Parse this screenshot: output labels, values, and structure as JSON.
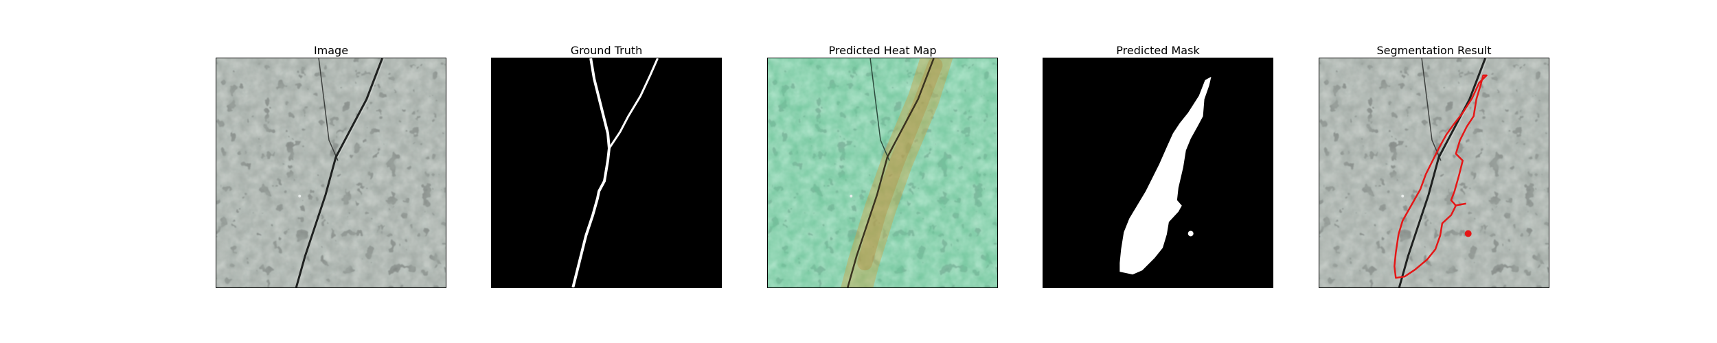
{
  "panels": [
    {
      "title": "Image"
    },
    {
      "title": "Ground Truth"
    },
    {
      "title": "Predicted Heat Map"
    },
    {
      "title": "Predicted Mask"
    },
    {
      "title": "Segmentation Result"
    }
  ]
}
